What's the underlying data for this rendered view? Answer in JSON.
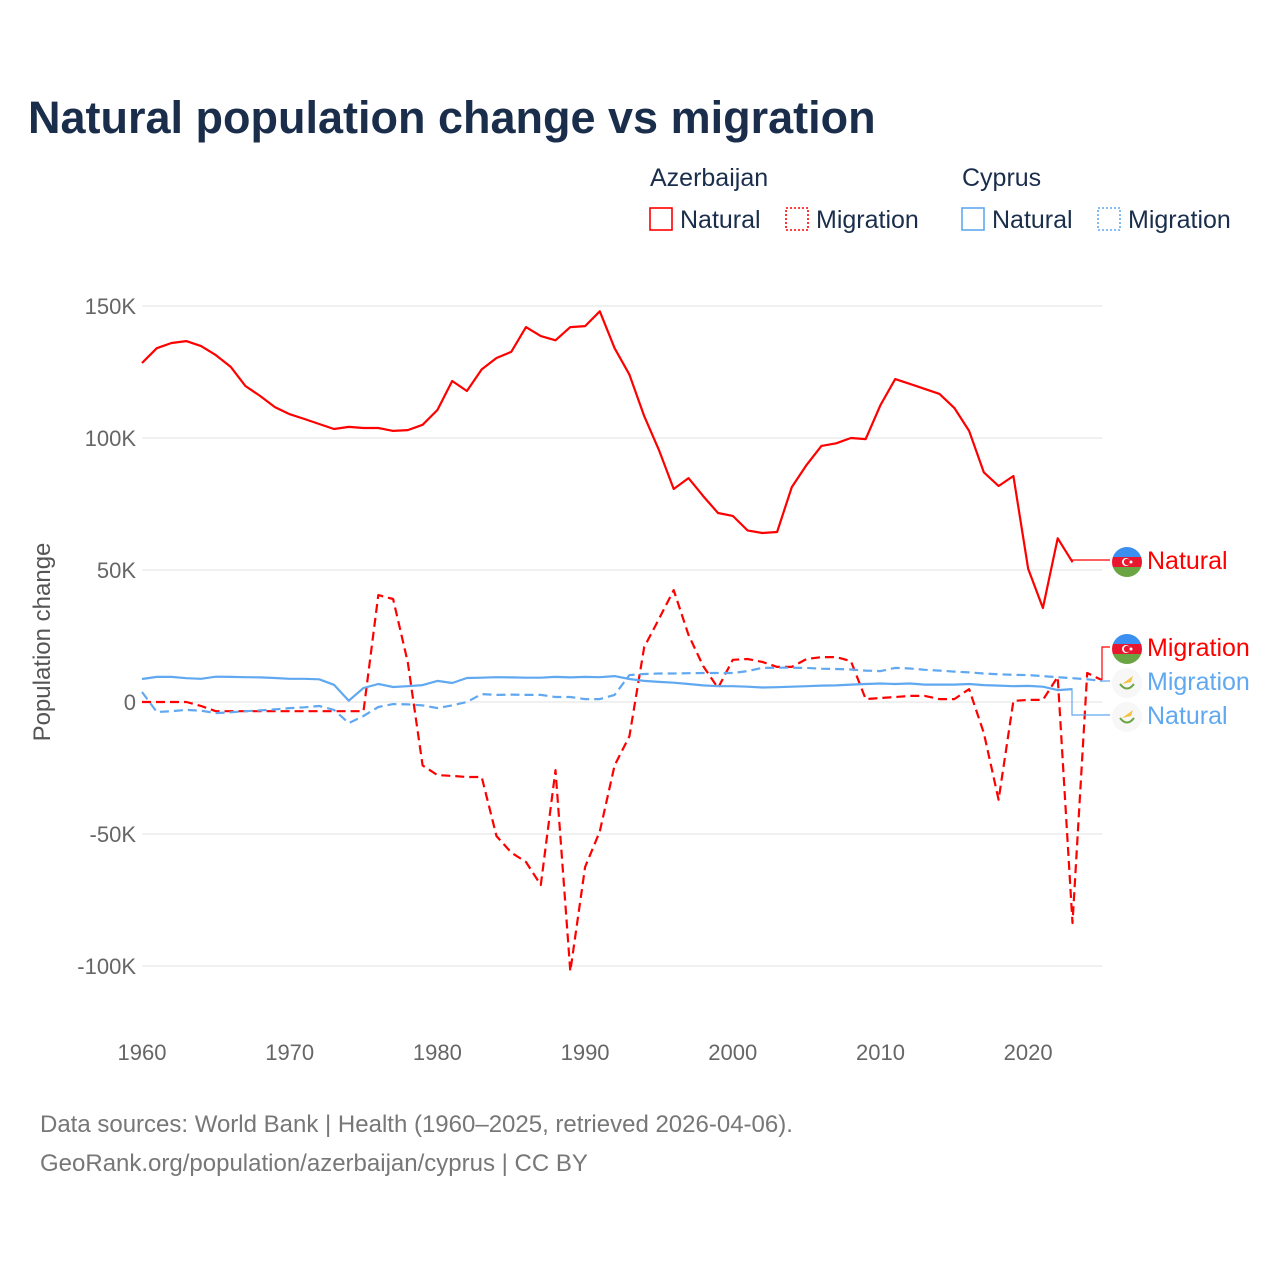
{
  "chart_data": {
    "type": "line",
    "title": "Natural population change vs migration",
    "ylabel": "Population change",
    "xlabel": "",
    "xlim": [
      1960,
      2025
    ],
    "ylim": [
      -100000,
      150000
    ],
    "x_ticks": [
      "1960",
      "1970",
      "1980",
      "1990",
      "2000",
      "2010",
      "2020"
    ],
    "y_ticks": [
      {
        "v": 150,
        "label": "150K"
      },
      {
        "v": 100,
        "label": "100K"
      },
      {
        "v": 50,
        "label": "50K"
      },
      {
        "v": 0,
        "label": "0"
      },
      {
        "v": -50,
        "label": "-50K"
      },
      {
        "v": -100,
        "label": "-100K"
      }
    ],
    "units": "thousands",
    "grid": true,
    "legend": {
      "groups": [
        {
          "name": "Azerbaijan",
          "items": [
            "Natural",
            "Migration"
          ]
        },
        {
          "name": "Cyprus",
          "items": [
            "Natural",
            "Migration"
          ]
        }
      ],
      "placement": "top-right"
    },
    "x_start": 1960,
    "series": [
      {
        "name": "Natural",
        "country": "Azerbaijan",
        "color": "#ff0000",
        "dash": false,
        "values": [
          128.4,
          134,
          136,
          136.7,
          134.8,
          131.4,
          127,
          119.7,
          115.9,
          111.7,
          109,
          107.2,
          105.3,
          103.4,
          104.2,
          103.8,
          103.8,
          102.7,
          103,
          105,
          110.6,
          121.6,
          117.8,
          126,
          130.3,
          132.6,
          142,
          138.6,
          137,
          142,
          142.4,
          148,
          134,
          124,
          108.3,
          95.5,
          80.7,
          84.8,
          78,
          71.6,
          70.5,
          65,
          64,
          64.4,
          81.4,
          89.8,
          97,
          98,
          100,
          99.6,
          112.5,
          122.3,
          120.5,
          118.6,
          116.7,
          111.4,
          102.7,
          87,
          81.8,
          85.6,
          50.4,
          35.6,
          62,
          53
        ]
      },
      {
        "name": "Migration",
        "country": "Azerbaijan",
        "color": "#ff0000",
        "dash": true,
        "values": [
          0,
          0,
          0,
          0,
          -1.5,
          -3.5,
          -3.5,
          -3.5,
          -3.5,
          -3.5,
          -3.5,
          -3.5,
          -3.5,
          -3.5,
          -3.5,
          -3.5,
          40.5,
          39,
          15,
          -24,
          -27.7,
          -28,
          -28.4,
          -28.4,
          -50.8,
          -57,
          -60.6,
          -69.3,
          -25.8,
          -102,
          -62.5,
          -49,
          -24,
          -13,
          20.8,
          31.4,
          42.4,
          25.4,
          13.6,
          5.3,
          16,
          16.3,
          15.2,
          13.3,
          13.3,
          16.3,
          17,
          17,
          15.5,
          1.1,
          1.5,
          1.9,
          2.3,
          2.3,
          1.1,
          1.1,
          4.9,
          -11.7,
          -37,
          0.4,
          0.8,
          0.8,
          9.5,
          -83.7,
          11,
          8.3
        ]
      },
      {
        "name": "Migration",
        "country": "Cyprus",
        "color": "#60a8f0",
        "dash": true,
        "values": [
          3.8,
          -3.8,
          -3.5,
          -3.0,
          -3.3,
          -4.2,
          -3.9,
          -3.5,
          -3.2,
          -2.8,
          -2.3,
          -2.0,
          -1.5,
          -3.0,
          -8.0,
          -5.3,
          -1.9,
          -0.8,
          -0.9,
          -1.3,
          -2.3,
          -1.3,
          0,
          3.0,
          2.7,
          2.8,
          2.7,
          2.7,
          1.9,
          1.9,
          1.1,
          1.1,
          2.7,
          10.2,
          10.6,
          10.8,
          10.8,
          10.9,
          11.0,
          11.0,
          11.0,
          11.7,
          12.9,
          13.0,
          13.0,
          12.9,
          12.6,
          12.5,
          12.3,
          11.9,
          11.7,
          12.9,
          12.7,
          12.2,
          11.9,
          11.5,
          11.2,
          10.8,
          10.5,
          10.3,
          10.2,
          9.8,
          9.4,
          9.0,
          8.6,
          8.0
        ]
      },
      {
        "name": "Natural",
        "country": "Cyprus",
        "color": "#60a8f0",
        "dash": false,
        "values": [
          8.7,
          9.5,
          9.5,
          9.0,
          8.8,
          9.6,
          9.5,
          9.4,
          9.3,
          9.1,
          8.8,
          8.8,
          8.6,
          6.5,
          0.5,
          5.3,
          6.8,
          5.7,
          6.0,
          6.4,
          8.0,
          7.2,
          9.1,
          9.2,
          9.4,
          9.3,
          9.2,
          9.2,
          9.5,
          9.3,
          9.5,
          9.4,
          9.8,
          8.7,
          8.0,
          7.6,
          7.3,
          6.8,
          6.3,
          6.0,
          6.0,
          5.8,
          5.5,
          5.6,
          5.8,
          6.0,
          6.2,
          6.3,
          6.6,
          6.8,
          7.0,
          6.8,
          7.0,
          6.6,
          6.6,
          6.6,
          6.8,
          6.4,
          6.2,
          6.0,
          6.1,
          5.8,
          4.5,
          4.9
        ]
      }
    ]
  },
  "source_line1": "Data sources: World Bank | Health (1960–2025, retrieved 2026-04-06).",
  "source_line2": "GeoRank.org/population/azerbaijan/cyprus | CC BY"
}
